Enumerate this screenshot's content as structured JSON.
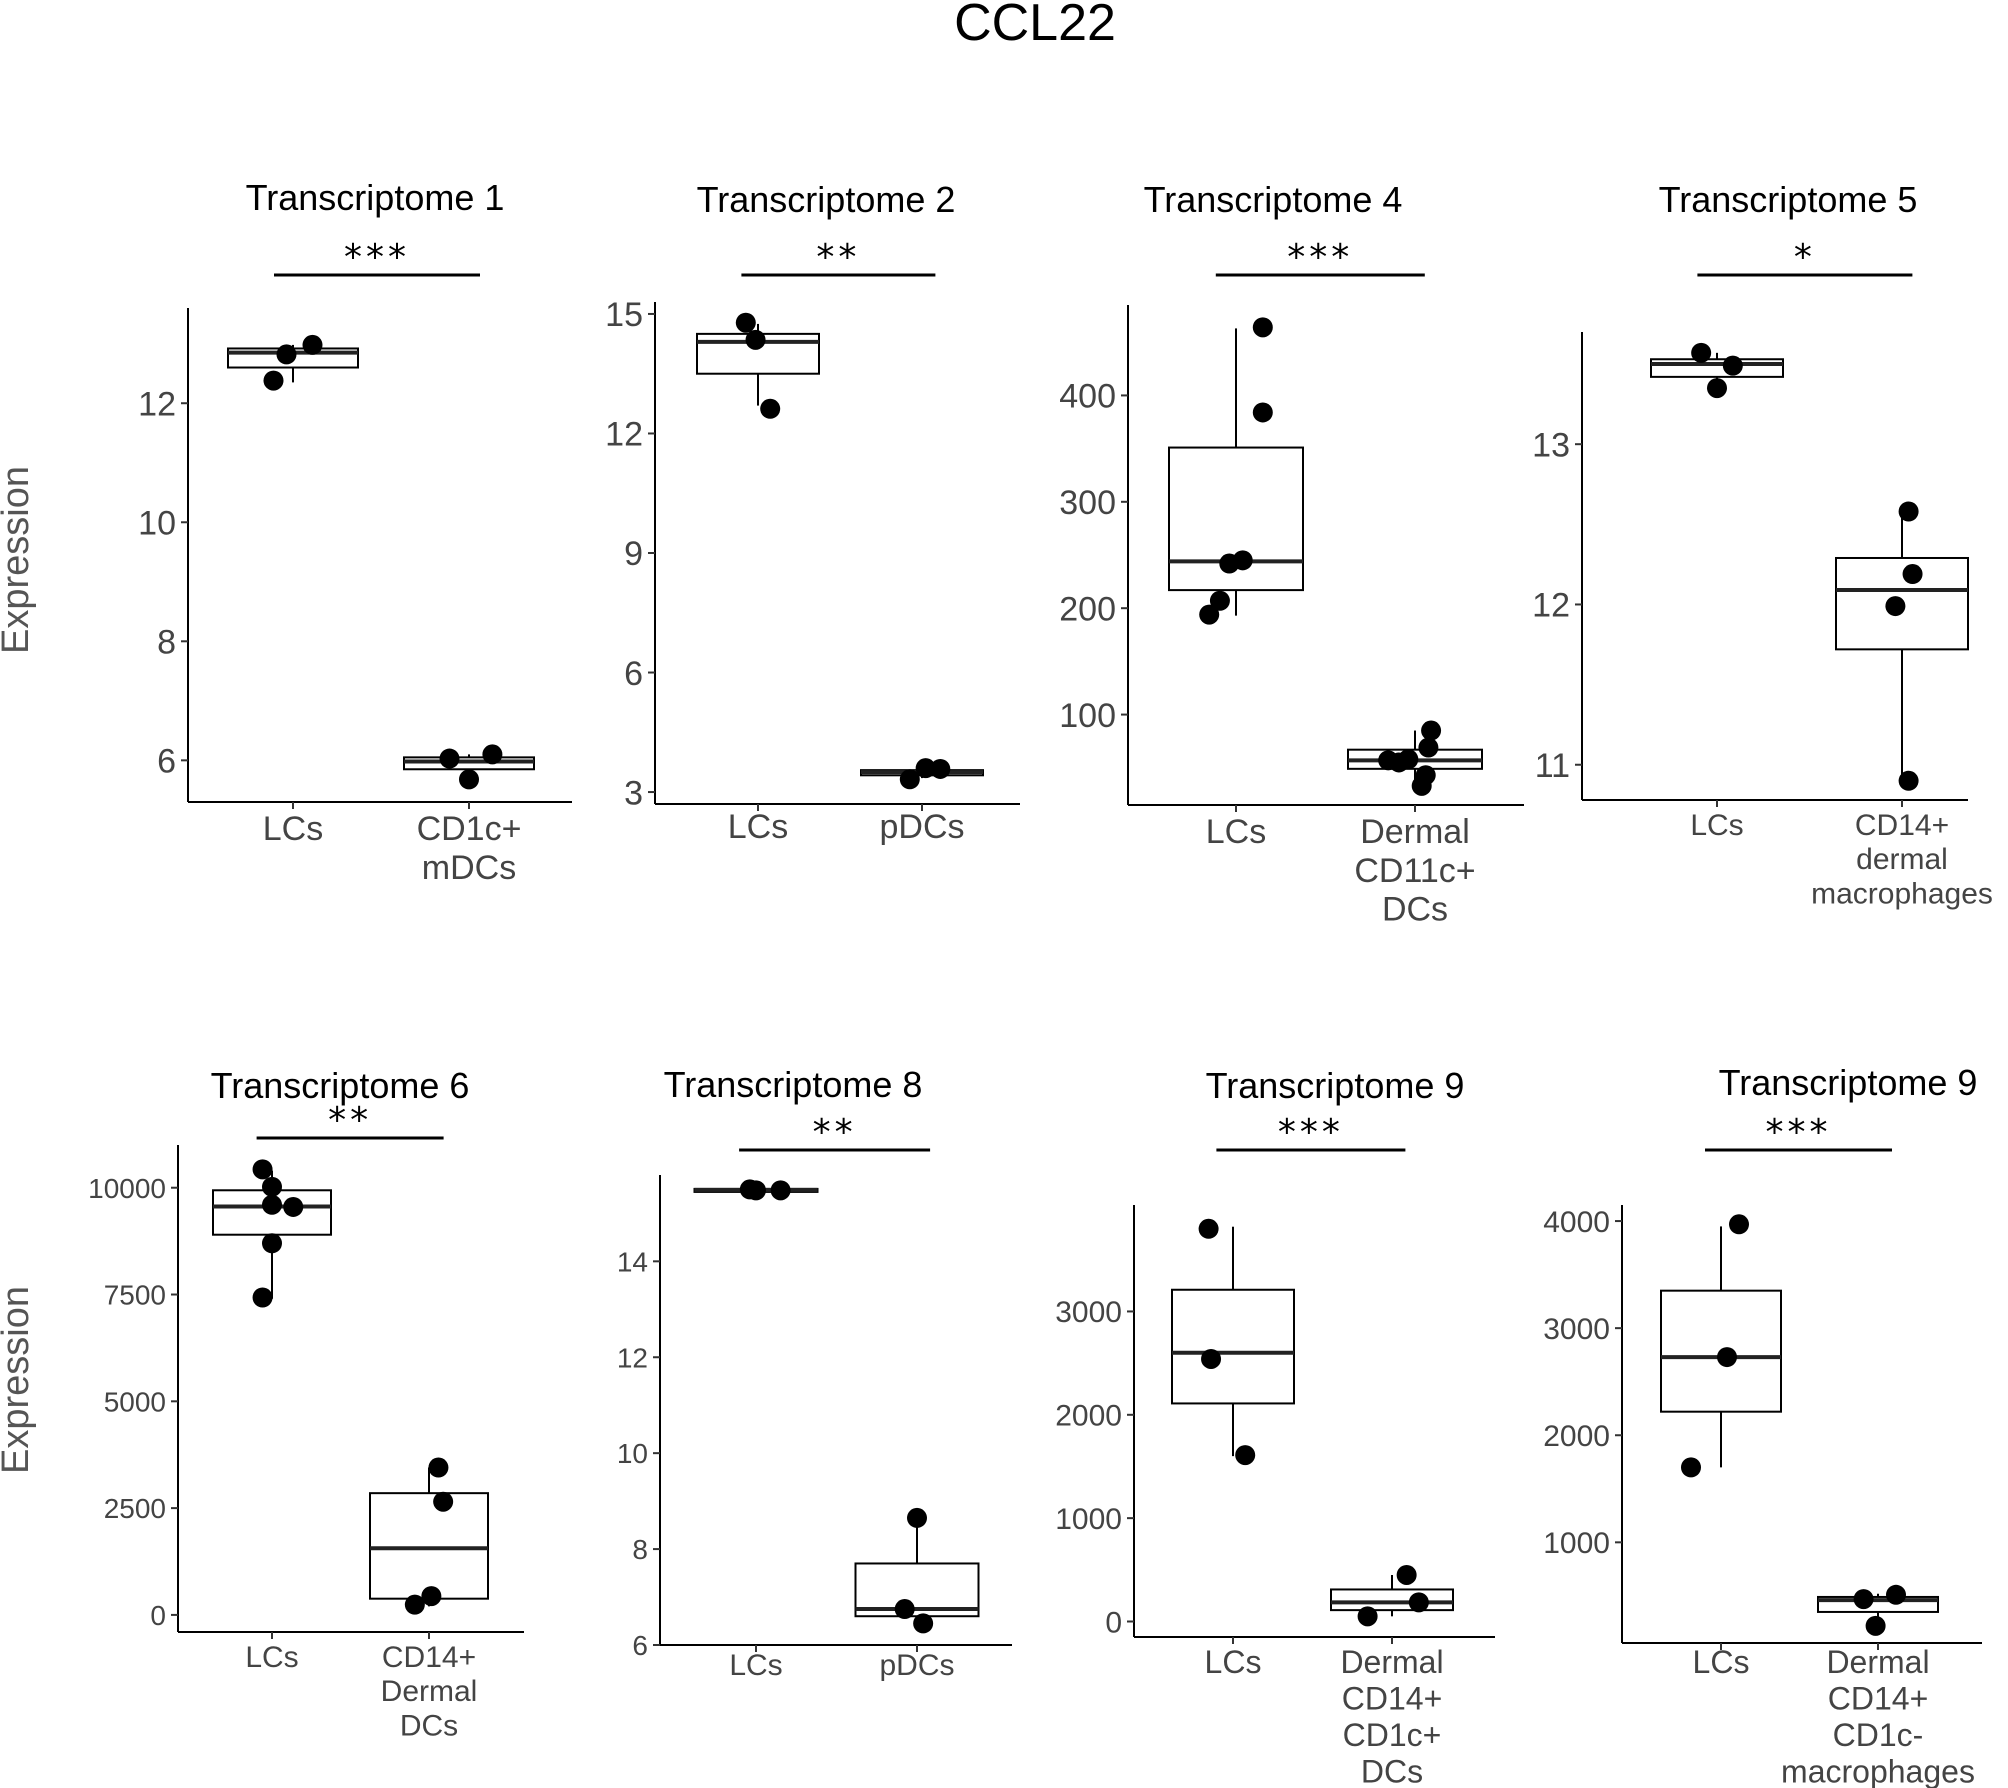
{
  "figure_title": "CCL22",
  "ylabel": "Expression",
  "chart_data": [
    {
      "type": "boxplot",
      "title": "Transcriptome 1",
      "ylabel": "Expression",
      "yticks": [
        6,
        8,
        10,
        12
      ],
      "ylim": [
        5.3,
        13.6
      ],
      "significance": "***",
      "groups": [
        {
          "label": [
            "LCs"
          ],
          "box": {
            "whisker_low": 12.35,
            "q1": 12.6,
            "median": 12.85,
            "q3": 12.92,
            "whisker_high": 12.98
          },
          "points": [
            [
              -0.15,
              12.38
            ],
            [
              -0.05,
              12.82
            ],
            [
              0.15,
              12.98
            ]
          ]
        },
        {
          "label": [
            "CD1c+",
            "mDCs"
          ],
          "box": {
            "whisker_low": 5.7,
            "q1": 5.85,
            "median": 5.98,
            "q3": 6.05,
            "whisker_high": 6.1
          },
          "points": [
            [
              -0.15,
              6.03
            ],
            [
              0.0,
              5.68
            ],
            [
              0.18,
              6.1
            ]
          ]
        }
      ]
    },
    {
      "type": "boxplot",
      "title": "Transcriptome 2",
      "ylabel": "",
      "yticks": [
        3,
        6,
        9,
        12,
        15
      ],
      "ylim": [
        2.7,
        15.3
      ],
      "significance": "**",
      "groups": [
        {
          "label": [
            "LCs"
          ],
          "box": {
            "whisker_low": 12.7,
            "q1": 13.5,
            "median": 14.3,
            "q3": 14.5,
            "whisker_high": 14.75
          },
          "points": [
            [
              -0.1,
              14.78
            ],
            [
              -0.02,
              14.35
            ],
            [
              0.1,
              12.62
            ]
          ]
        },
        {
          "label": [
            "pDCs"
          ],
          "box": {
            "whisker_low": 3.35,
            "q1": 3.42,
            "median": 3.5,
            "q3": 3.55,
            "whisker_high": 3.62
          },
          "points": [
            [
              -0.1,
              3.32
            ],
            [
              0.03,
              3.6
            ],
            [
              0.15,
              3.58
            ]
          ]
        }
      ]
    },
    {
      "type": "boxplot",
      "title": "Transcriptome 4",
      "ylabel": "",
      "yticks": [
        100,
        200,
        300,
        400
      ],
      "ylim": [
        15,
        485
      ],
      "significance": "***",
      "groups": [
        {
          "label": [
            "LCs"
          ],
          "box": {
            "whisker_low": 193,
            "q1": 217,
            "median": 244,
            "q3": 351,
            "whisker_high": 463
          },
          "points": [
            [
              -0.2,
              194
            ],
            [
              -0.12,
              207
            ],
            [
              -0.05,
              242
            ],
            [
              0.05,
              245
            ],
            [
              0.2,
              384
            ],
            [
              0.2,
              464
            ]
          ]
        },
        {
          "label": [
            "Dermal",
            "CD11c+",
            "DCs"
          ],
          "box": {
            "whisker_low": 32,
            "q1": 49,
            "median": 57,
            "q3": 67,
            "whisker_high": 85
          },
          "points": [
            [
              -0.2,
              57
            ],
            [
              -0.12,
              55
            ],
            [
              -0.05,
              58
            ],
            [
              0.05,
              33
            ],
            [
              0.08,
              43
            ],
            [
              0.1,
              69
            ],
            [
              0.12,
              85
            ]
          ]
        }
      ]
    },
    {
      "type": "boxplot",
      "title": "Transcriptome 5",
      "ylabel": "",
      "yticks": [
        11,
        12,
        13
      ],
      "ylim": [
        10.78,
        13.7
      ],
      "significance": "*",
      "groups": [
        {
          "label": [
            "LCs"
          ],
          "box": {
            "whisker_low": 13.35,
            "q1": 13.42,
            "median": 13.5,
            "q3": 13.53,
            "whisker_high": 13.57
          },
          "points": [
            [
              -0.12,
              13.57
            ],
            [
              0.0,
              13.35
            ],
            [
              0.12,
              13.49
            ]
          ]
        },
        {
          "label": [
            "CD14+",
            "dermal",
            "macrophages"
          ],
          "box": {
            "whisker_low": 10.9,
            "q1": 11.72,
            "median": 12.09,
            "q3": 12.29,
            "whisker_high": 12.58
          },
          "points": [
            [
              -0.05,
              11.99
            ],
            [
              0.05,
              12.58
            ],
            [
              0.08,
              12.19
            ],
            [
              0.05,
              10.9
            ]
          ]
        }
      ]
    },
    {
      "type": "boxplot",
      "title": "Transcriptome 6",
      "ylabel": "Expression",
      "yticks": [
        0,
        2500,
        5000,
        7500,
        10000
      ],
      "ylim": [
        -400,
        11000
      ],
      "significance": "**",
      "groups": [
        {
          "label": [
            "LCs"
          ],
          "box": {
            "whisker_low": 7400,
            "q1": 8900,
            "median": 9560,
            "q3": 9940,
            "whisker_high": 10400
          },
          "points": [
            [
              -0.08,
              10430
            ],
            [
              0.0,
              10020
            ],
            [
              0.0,
              9600
            ],
            [
              0.18,
              9550
            ],
            [
              0.0,
              8700
            ],
            [
              -0.08,
              7430
            ]
          ]
        },
        {
          "label": [
            "CD14+",
            "Dermal",
            "DCs"
          ],
          "box": {
            "whisker_low": 200,
            "q1": 380,
            "median": 1560,
            "q3": 2850,
            "whisker_high": 3450
          },
          "points": [
            [
              -0.12,
              240
            ],
            [
              0.02,
              440
            ],
            [
              0.12,
              2650
            ],
            [
              0.08,
              3450
            ]
          ]
        }
      ]
    },
    {
      "type": "boxplot",
      "title": "Transcriptome 8",
      "ylabel": "",
      "yticks": [
        6,
        8,
        10,
        12,
        14
      ],
      "ylim": [
        6.0,
        15.8
      ],
      "significance": "**",
      "groups": [
        {
          "label": [
            "LCs"
          ],
          "box": {
            "whisker_low": 15.45,
            "q1": 15.47,
            "median": 15.49,
            "q3": 15.51,
            "whisker_high": 15.53
          },
          "points": [
            [
              -0.05,
              15.5
            ],
            [
              0.0,
              15.48
            ],
            [
              0.2,
              15.48
            ]
          ]
        },
        {
          "label": [
            "pDCs"
          ],
          "box": {
            "whisker_low": 6.45,
            "q1": 6.6,
            "median": 6.75,
            "q3": 7.7,
            "whisker_high": 8.65
          },
          "points": [
            [
              -0.1,
              6.75
            ],
            [
              0.05,
              6.45
            ],
            [
              0.0,
              8.65
            ]
          ]
        }
      ]
    },
    {
      "type": "boxplot",
      "title": "Transcriptome 9",
      "ylabel": "",
      "yticks": [
        0,
        1000,
        2000,
        3000
      ],
      "ylim": [
        -150,
        4030
      ],
      "significance": "***",
      "groups": [
        {
          "label": [
            "LCs"
          ],
          "box": {
            "whisker_low": 1600,
            "q1": 2110,
            "median": 2600,
            "q3": 3210,
            "whisker_high": 3820
          },
          "points": [
            [
              -0.2,
              3800
            ],
            [
              -0.18,
              2540
            ],
            [
              0.1,
              1610
            ]
          ]
        },
        {
          "label": [
            "Dermal",
            "CD14+",
            "CD1c+",
            "DCs"
          ],
          "box": {
            "whisker_low": 50,
            "q1": 110,
            "median": 185,
            "q3": 310,
            "whisker_high": 450
          },
          "points": [
            [
              -0.2,
              50
            ],
            [
              0.12,
              450
            ],
            [
              0.22,
              185
            ]
          ]
        }
      ]
    },
    {
      "type": "boxplot",
      "title": "Transcriptome 9",
      "ylabel": "",
      "yticks": [
        1000,
        2000,
        3000,
        4000
      ],
      "ylim": [
        60,
        4150
      ],
      "significance": "***",
      "groups": [
        {
          "label": [
            "LCs"
          ],
          "box": {
            "whisker_low": 1700,
            "q1": 2220,
            "median": 2730,
            "q3": 3350,
            "whisker_high": 3950
          },
          "points": [
            [
              -0.25,
              1700
            ],
            [
              0.05,
              2730
            ],
            [
              0.15,
              3970
            ]
          ]
        },
        {
          "label": [
            "Dermal",
            "CD14+",
            "CD1c-",
            "macrophages"
          ],
          "box": {
            "whisker_low": 220,
            "q1": 350,
            "median": 460,
            "q3": 490,
            "whisker_high": 520
          },
          "points": [
            [
              -0.12,
              470
            ],
            [
              -0.02,
              220
            ],
            [
              0.15,
              510
            ]
          ]
        }
      ]
    }
  ]
}
